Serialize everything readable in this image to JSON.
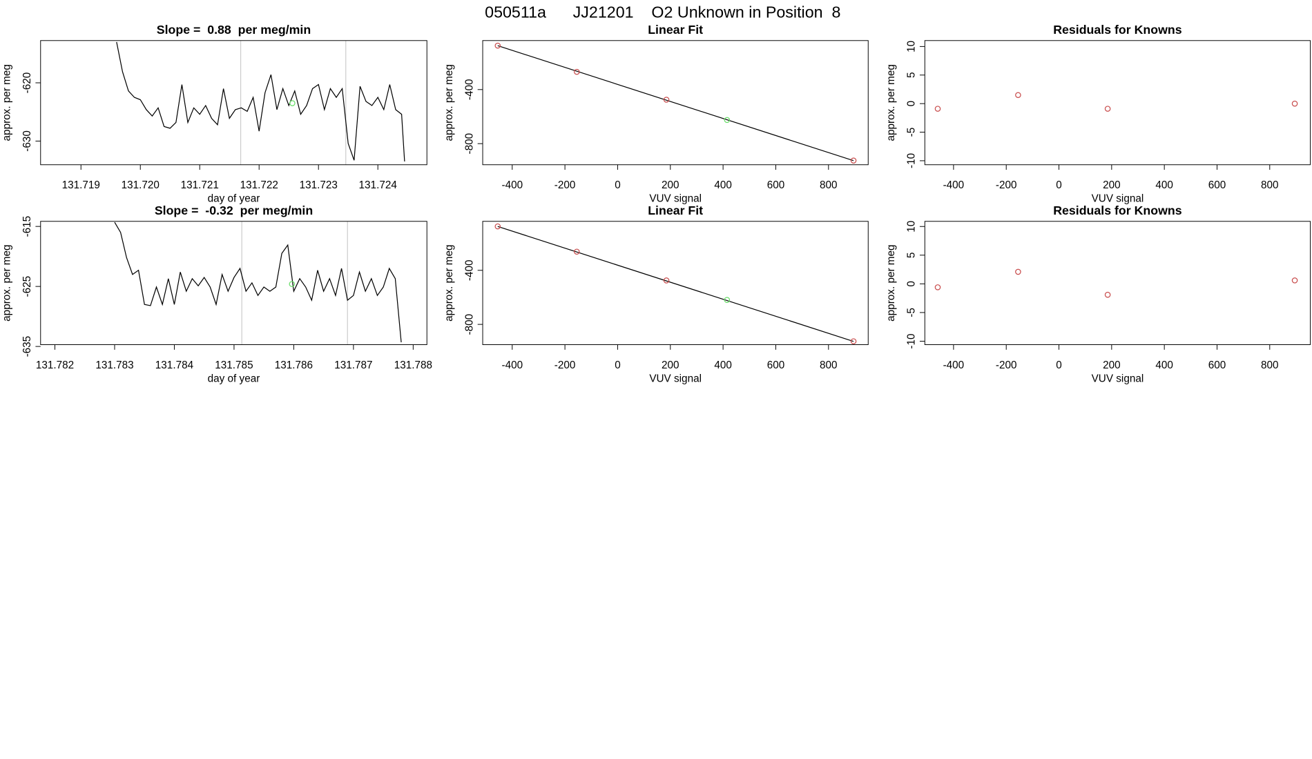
{
  "title": "050511a      JJ21201    O2 Unknown in Position  8",
  "chart_data": [
    {
      "type": "line",
      "title": "Slope =  0.88  per meg/min",
      "xlabel": "day of year",
      "ylabel": "approx. per meg",
      "color": "#000000",
      "x": [
        131.7196,
        131.7197,
        131.7198,
        131.7199,
        131.72,
        131.7201,
        131.7202,
        131.7203,
        131.7204,
        131.7205,
        131.7206,
        131.7207,
        131.7208,
        131.7209,
        131.721,
        131.7211,
        131.7212,
        131.7213,
        131.7214,
        131.7215,
        131.7216,
        131.7217,
        131.7218,
        131.7219,
        131.722,
        131.7221,
        131.7222,
        131.7223,
        131.7224,
        131.7225,
        131.7226,
        131.7227,
        131.7228,
        131.7229,
        131.723,
        131.7231,
        131.7232,
        131.7233,
        131.7234,
        131.7235,
        131.7236,
        131.7237,
        131.7238,
        131.7239,
        131.724,
        131.7241,
        131.7242,
        131.7243,
        131.7244,
        131.72445
      ],
      "values": [
        -613,
        -618.1,
        -621.4,
        -622.5,
        -622.9,
        -624.6,
        -625.7,
        -624.3,
        -627.5,
        -627.8,
        -626.8,
        -620.3,
        -626.8,
        -624.3,
        -625.4,
        -623.9,
        -626.1,
        -627.2,
        -621.0,
        -626.1,
        -624.6,
        -624.3,
        -624.9,
        -622.5,
        -628.3,
        -621.7,
        -618.6,
        -624.6,
        -621.0,
        -623.9,
        -621.4,
        -625.4,
        -623.9,
        -621.0,
        -620.3,
        -624.6,
        -621.0,
        -622.5,
        -621.0,
        -630.4,
        -633.3,
        -620.6,
        -623.2,
        -623.9,
        -622.5,
        -624.6,
        -620.3,
        -624.6,
        -625.4,
        -633.5
      ],
      "highlight": {
        "x": 131.72256,
        "value": -623.5,
        "color": "#66dd66"
      },
      "vlines": [
        131.72169,
        131.72346
      ],
      "vline_color": "#cccccc",
      "xlim": [
        131.71832,
        131.724826
      ],
      "ylim": [
        -634.06,
        -612.75
      ],
      "xticks": [
        131.719,
        {
          "value": 131.72,
          "label": "131.720"
        },
        131.721,
        131.722,
        131.723,
        131.724
      ],
      "yticks": [
        -620,
        -630
      ]
    },
    {
      "type": "scatter",
      "title": "Linear Fit",
      "xlabel": "VUV signal",
      "ylabel": "approx. per meg",
      "series": [
        {
          "color": "#c84b4b",
          "x": [
            -455,
            -155,
            185,
            895
          ],
          "values": [
            -75,
            -269,
            -475,
            -925
          ]
        },
        {
          "color": "#66dd66",
          "x": [
            415
          ],
          "values": [
            -625
          ]
        }
      ],
      "fit": {
        "slope": -0.63,
        "intercept": -362,
        "color": "#000000"
      },
      "xlim": [
        -512,
        950.6
      ],
      "ylim": [
        -956,
        -37.5
      ],
      "xticks": [
        -400,
        -200,
        0,
        200,
        400,
        600,
        800
      ],
      "yticks": [
        -400,
        -800
      ]
    },
    {
      "type": "scatter",
      "title": "Residuals for Knowns",
      "xlabel": "VUV signal",
      "ylabel": "approx. per meg",
      "series": [
        {
          "color": "#c84b4b",
          "x": [
            -460,
            -155,
            185,
            895
          ],
          "values": [
            -0.9,
            1.5,
            -0.9,
            0.0
          ]
        }
      ],
      "xlim": [
        -509,
        954
      ],
      "ylim": [
        -10.7,
        11.04
      ],
      "xticks": [
        -400,
        -200,
        0,
        200,
        400,
        600,
        800
      ],
      "yticks": [
        -10,
        -5,
        0,
        5,
        10
      ]
    },
    {
      "type": "line",
      "title": "Slope =  -0.32  per meg/min",
      "xlabel": "day of year",
      "ylabel": "approx. per meg",
      "color": "#000000",
      "x": [
        131.783,
        131.7831,
        131.7832,
        131.7833,
        131.7834,
        131.7835,
        131.7836,
        131.7837,
        131.7838,
        131.7839,
        131.784,
        131.7841,
        131.7842,
        131.7843,
        131.7844,
        131.7845,
        131.7846,
        131.7847,
        131.7848,
        131.7849,
        131.785,
        131.7851,
        131.7852,
        131.7853,
        131.7854,
        131.7855,
        131.7856,
        131.7857,
        131.7858,
        131.7859,
        131.786,
        131.7861,
        131.7862,
        131.7863,
        131.7864,
        131.7865,
        131.7866,
        131.7867,
        131.7868,
        131.7869,
        131.787,
        131.7871,
        131.7872,
        131.7873,
        131.7874,
        131.7875,
        131.7876,
        131.7877,
        131.7878
      ],
      "values": [
        -614.3,
        -616.0,
        -620.2,
        -623.0,
        -622.3,
        -628.0,
        -628.2,
        -625.1,
        -628.0,
        -623.7,
        -628.0,
        -622.6,
        -625.8,
        -623.7,
        -624.9,
        -623.5,
        -625.1,
        -628.0,
        -623.0,
        -625.8,
        -623.5,
        -622.0,
        -625.8,
        -624.4,
        -626.5,
        -625.1,
        -625.8,
        -625.1,
        -619.5,
        -618.1,
        -625.8,
        -623.7,
        -625.1,
        -627.3,
        -622.3,
        -625.8,
        -623.7,
        -626.5,
        -622.0,
        -627.3,
        -626.5,
        -622.6,
        -625.8,
        -623.7,
        -626.5,
        -625.1,
        -622.0,
        -623.7,
        -634.3
      ],
      "highlight": {
        "x": 131.78597,
        "value": -624.6,
        "color": "#66dd66"
      },
      "vlines": [
        131.78513,
        131.7869
      ],
      "vline_color": "#cccccc",
      "xlim": [
        131.78176,
        131.78823
      ],
      "ylim": [
        -634.7,
        -614.15
      ],
      "xticks": [
        131.782,
        131.783,
        131.784,
        131.785,
        131.786,
        131.787,
        131.788
      ],
      "yticks": [
        -615,
        -625,
        -635
      ]
    },
    {
      "type": "scatter",
      "title": "Linear Fit",
      "xlabel": "VUV signal",
      "ylabel": "approx. per meg",
      "series": [
        {
          "color": "#c84b4b",
          "x": [
            -455,
            -155,
            185,
            895
          ],
          "values": [
            -75,
            -262,
            -475,
            -925
          ]
        },
        {
          "color": "#66dd66",
          "x": [
            415
          ],
          "values": [
            -619
          ]
        }
      ],
      "fit": {
        "slope": -0.63,
        "intercept": -362,
        "color": "#000000"
      },
      "xlim": [
        -512,
        950.6
      ],
      "ylim": [
        -950,
        -37.5
      ],
      "xticks": [
        -400,
        -200,
        0,
        200,
        400,
        600,
        800
      ],
      "yticks": [
        -400,
        -800
      ]
    },
    {
      "type": "scatter",
      "title": "Residuals for Knowns",
      "xlabel": "VUV signal",
      "ylabel": "approx. per meg",
      "series": [
        {
          "color": "#c84b4b",
          "x": [
            -460,
            -155,
            185,
            895
          ],
          "values": [
            -0.6,
            2.1,
            -1.9,
            0.6
          ]
        }
      ],
      "xlim": [
        -509,
        954
      ],
      "ylim": [
        -10.6,
        10.9
      ],
      "xticks": [
        -400,
        -200,
        0,
        200,
        400,
        600,
        800
      ],
      "yticks": [
        -10,
        -5,
        0,
        5,
        10
      ]
    }
  ]
}
